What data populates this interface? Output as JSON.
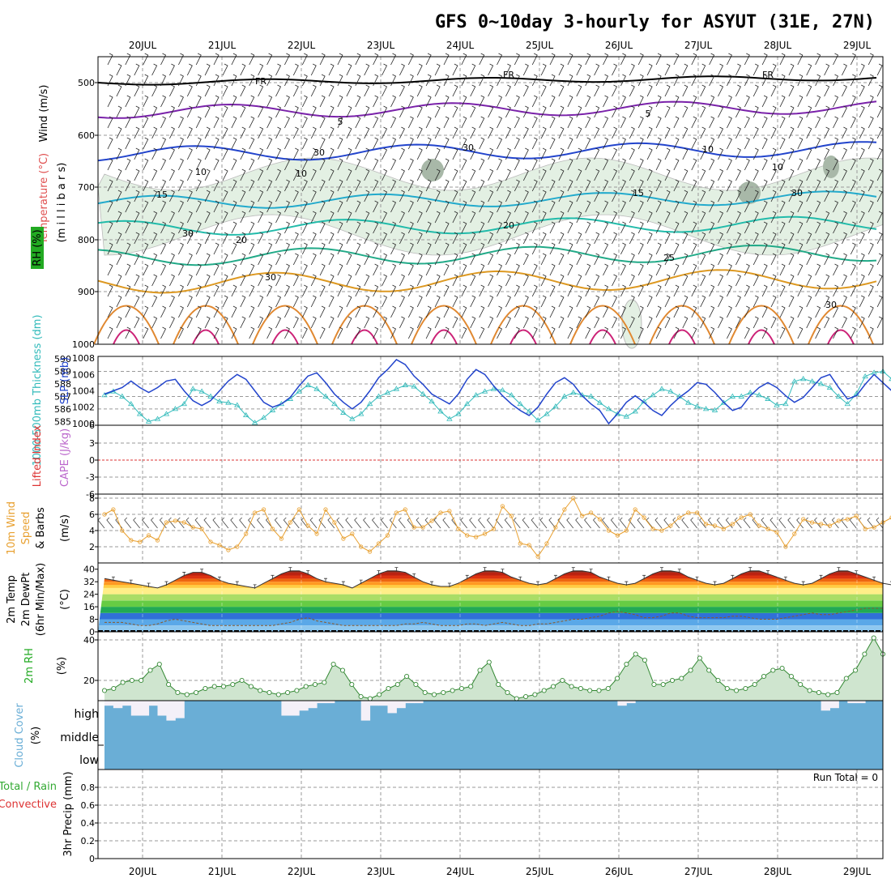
{
  "title": "GFS 0~10day 3-hourly for ASYUT (31E, 27N)",
  "dates": [
    "20JUL",
    "21JUL",
    "22JUL",
    "23JUL",
    "24JUL",
    "25JUL",
    "26JUL",
    "27JUL",
    "28JUL",
    "29JUL"
  ],
  "colors": {
    "temp_label": "#e05050",
    "wind_label": "#000000",
    "rh_green": "#22aa22",
    "thickness": "#33bbbb",
    "slp": "#2244cc",
    "lifted": "#dd3333",
    "cape": "#bb66cc",
    "wind10": "#e8a030",
    "cloud": "#6aaed6",
    "precip_total": "#33aa33",
    "precip_conv": "#dd3333"
  },
  "panels": {
    "upper": {
      "ylabels": {
        "wind": "Wind (m/s)",
        "temp": "Temperature (°C)",
        "rh": "RH (%)",
        "mb": "(m i l l i b a r s)"
      },
      "y_ticks": [
        "500",
        "600",
        "700",
        "800",
        "900",
        "1000"
      ],
      "contour_labels": [
        "FR",
        "FR",
        "FR",
        "5",
        "5",
        "10",
        "10",
        "15",
        "15",
        "20",
        "20",
        "25",
        "30",
        "30",
        "30",
        "30",
        "10",
        "10",
        "30",
        "30"
      ]
    },
    "thickness_slp": {
      "ylabels": {
        "thickness": "1000-500mb Thickness (dm)",
        "slp": "SLP (mb)"
      },
      "left_ticks": [
        "590",
        "589",
        "588",
        "587",
        "586",
        "585"
      ],
      "right_ticks": [
        "1008",
        "1006",
        "1004",
        "1002",
        "1000"
      ]
    },
    "li_cape": {
      "ylabels": {
        "li": "Lifted Index",
        "cape": "CAPE (J/kg)"
      },
      "left_ticks": [
        "6",
        "3",
        "0",
        "-3",
        "-6"
      ]
    },
    "wind10": {
      "ylabels": {
        "a": "10m Wind",
        "b": "Speed",
        "c": "& Barbs",
        "unit": "(m/s)"
      },
      "y_ticks": [
        "8",
        "6",
        "4",
        "2"
      ]
    },
    "temp2m": {
      "ylabels": {
        "a": "2m Temp",
        "b": "2m DewPt",
        "c": "(6hr Min/Max)",
        "unit": "(°C)"
      },
      "y_ticks": [
        "40",
        "32",
        "24",
        "16",
        "8",
        "0"
      ]
    },
    "rh2m": {
      "ylabels": {
        "a": "2m RH",
        "unit": "(%)"
      },
      "y_ticks": [
        "40",
        "20"
      ]
    },
    "cloud": {
      "ylabels": {
        "a": "Cloud Cover",
        "unit": "(%)"
      },
      "levels": [
        "high",
        "middle",
        "low"
      ]
    },
    "precip": {
      "ylabels": {
        "a": "Total / Rain",
        "b": "Convective",
        "c": "3hr Precip (mm)"
      },
      "y_ticks": [
        "0.8",
        "0.6",
        "0.4",
        "0.2",
        "0"
      ],
      "run_total": "Run Total = 0"
    }
  },
  "chart_data": [
    {
      "type": "line",
      "name": "1000-500mb Thickness",
      "x_dates_3hourly_from": "19JUL 12Z",
      "ylim": [
        584.7,
        590.2
      ],
      "values": [
        587.1,
        587.4,
        587.0,
        586.4,
        585.6,
        585.0,
        585.2,
        585.6,
        586.0,
        586.4,
        587.6,
        587.4,
        587.0,
        586.6,
        586.5,
        586.3,
        585.5,
        584.9,
        585.3,
        585.9,
        586.4,
        586.8,
        587.4,
        587.9,
        587.6,
        587.0,
        586.4,
        585.7,
        585.2,
        585.6,
        586.4,
        587.0,
        587.3,
        587.6,
        587.9,
        587.8,
        587.2,
        586.6,
        585.8,
        585.2,
        585.6,
        586.4,
        587.1,
        587.4,
        587.6,
        587.5,
        587.1,
        586.4,
        585.8,
        585.1,
        585.6,
        586.2,
        587.0,
        587.3,
        587.1,
        587.0,
        586.5,
        586.0,
        585.6,
        585.4,
        585.8,
        586.6,
        587.1,
        587.6,
        587.4,
        587.0,
        586.5,
        586.2,
        586.0,
        585.9,
        586.5,
        587.0,
        587.0,
        587.3,
        587.1,
        586.8,
        586.3,
        586.4,
        588.2,
        588.4,
        588.2,
        588.0,
        587.7,
        587.0,
        586.4,
        587.2,
        588.6,
        588.9,
        589.0,
        588.4,
        587.7,
        587.2,
        587.0
      ]
    },
    {
      "type": "line",
      "name": "SLP",
      "ylim": [
        999.8,
        1008.2
      ],
      "values": [
        1003.6,
        1004.0,
        1004.4,
        1005.2,
        1004.4,
        1003.8,
        1004.4,
        1005.2,
        1005.4,
        1004.0,
        1002.8,
        1002.2,
        1002.8,
        1004.0,
        1005.2,
        1006.0,
        1005.4,
        1004.0,
        1002.6,
        1002.0,
        1002.4,
        1003.2,
        1004.6,
        1005.8,
        1006.2,
        1005.0,
        1003.6,
        1002.6,
        1001.8,
        1002.6,
        1004.0,
        1005.6,
        1006.6,
        1007.8,
        1007.2,
        1005.8,
        1004.8,
        1003.6,
        1003.0,
        1002.4,
        1003.6,
        1005.4,
        1006.6,
        1006.0,
        1004.6,
        1003.4,
        1002.4,
        1001.6,
        1001.0,
        1002.0,
        1003.6,
        1005.0,
        1005.6,
        1004.8,
        1003.4,
        1002.4,
        1001.6,
        1000.0,
        1001.2,
        1002.6,
        1003.4,
        1002.6,
        1001.6,
        1001.0,
        1002.2,
        1003.2,
        1004.0,
        1005.0,
        1004.8,
        1003.8,
        1002.6,
        1001.6,
        1002.0,
        1003.4,
        1004.4,
        1005.0,
        1004.4,
        1003.4,
        1002.6,
        1003.2,
        1004.4,
        1005.6,
        1006.0,
        1004.4,
        1003.0,
        1003.4,
        1004.8,
        1006.0,
        1005.0,
        1004.0,
        1004.6,
        1005.8,
        1006.8
      ]
    },
    {
      "type": "line",
      "name": "10m Wind Speed",
      "ylim": [
        0,
        8.5
      ],
      "values": [
        6.0,
        6.6,
        4.0,
        2.8,
        2.6,
        3.4,
        2.8,
        5.0,
        5.2,
        5.0,
        4.4,
        4.2,
        2.6,
        2.2,
        1.6,
        2.0,
        3.6,
        6.2,
        6.6,
        4.2,
        3.0,
        5.0,
        6.6,
        4.6,
        3.6,
        6.6,
        5.0,
        3.0,
        3.6,
        2.0,
        1.4,
        2.4,
        3.4,
        6.2,
        6.6,
        4.4,
        4.4,
        5.2,
        6.2,
        6.4,
        4.2,
        3.4,
        3.2,
        3.6,
        4.2,
        7.0,
        5.8,
        2.4,
        2.2,
        0.8,
        2.4,
        4.4,
        6.6,
        8.0,
        5.8,
        6.2,
        5.4,
        4.0,
        3.4,
        4.0,
        6.6,
        5.6,
        4.2,
        4.0,
        4.6,
        5.6,
        6.2,
        6.2,
        4.8,
        4.6,
        4.2,
        4.8,
        5.6,
        6.0,
        4.6,
        4.2,
        3.8,
        2.0,
        3.6,
        5.4,
        5.0,
        4.8,
        4.6,
        5.2,
        5.4,
        5.8,
        4.2,
        4.4,
        5.0,
        5.6,
        5.8,
        5.4,
        5.6
      ]
    },
    {
      "type": "area",
      "name": "2m Temp",
      "ylim": [
        0,
        44
      ],
      "values": [
        34,
        33,
        32,
        31,
        30,
        29,
        28,
        30,
        33,
        36,
        38,
        38,
        36,
        33,
        31,
        30,
        29,
        28,
        31,
        34,
        37,
        39,
        39,
        37,
        34,
        32,
        31,
        30,
        28,
        31,
        34,
        37,
        39,
        39,
        38,
        35,
        32,
        30,
        29,
        29,
        31,
        34,
        37,
        39,
        39,
        38,
        35,
        33,
        31,
        30,
        31,
        34,
        37,
        39,
        39,
        38,
        35,
        33,
        31,
        30,
        31,
        34,
        37,
        39,
        39,
        38,
        35,
        33,
        31,
        30,
        31,
        34,
        37,
        39,
        39,
        37,
        35,
        33,
        31,
        30,
        31,
        34,
        37,
        39,
        39,
        37,
        35,
        33,
        31,
        30,
        31,
        33,
        34
      ]
    },
    {
      "type": "line",
      "name": "2m DewPt",
      "ylim": [
        0,
        44
      ],
      "values": [
        6,
        6,
        6,
        5,
        4,
        4,
        5,
        7,
        8,
        7,
        6,
        5,
        4,
        4,
        4,
        4,
        4,
        4,
        4,
        4,
        5,
        6,
        8,
        9,
        7,
        6,
        5,
        4,
        4,
        4,
        4,
        4,
        4,
        4,
        5,
        5,
        6,
        5,
        4,
        4,
        4,
        5,
        5,
        4,
        5,
        6,
        5,
        4,
        4,
        5,
        5,
        6,
        7,
        8,
        8,
        9,
        10,
        12,
        13,
        12,
        11,
        9,
        9,
        10,
        12,
        12,
        10,
        9,
        9,
        9,
        9,
        10,
        10,
        9,
        8,
        8,
        8,
        9,
        10,
        11,
        12,
        11,
        11,
        12,
        13,
        14,
        15,
        15,
        15
      ]
    },
    {
      "type": "area",
      "name": "2m RH",
      "ylim": [
        10,
        44
      ],
      "values": [
        15,
        16,
        19,
        20,
        20,
        25,
        28,
        18,
        14,
        13,
        14,
        16,
        17,
        17,
        18,
        20,
        17,
        15,
        14,
        13,
        14,
        15,
        17,
        18,
        19,
        28,
        25,
        18,
        12,
        11,
        13,
        16,
        18,
        22,
        18,
        14,
        13,
        14,
        15,
        16,
        17,
        25,
        29,
        18,
        14,
        11,
        12,
        13,
        15,
        17,
        20,
        17,
        16,
        15,
        15,
        16,
        21,
        28,
        33,
        30,
        18,
        18,
        20,
        21,
        25,
        31,
        25,
        20,
        16,
        15,
        16,
        18,
        22,
        25,
        26,
        22,
        18,
        15,
        14,
        13,
        14,
        21,
        25,
        33,
        41,
        33
      ]
    },
    {
      "type": "bar",
      "name": "High Cloud Cover",
      "values": [
        10,
        15,
        10,
        30,
        30,
        10,
        30,
        40,
        35,
        0,
        0,
        0,
        0,
        0,
        0,
        0,
        0,
        0,
        0,
        0,
        30,
        30,
        20,
        15,
        5,
        5,
        0,
        0,
        0,
        40,
        10,
        10,
        25,
        15,
        5,
        5,
        0,
        0,
        0,
        0,
        0,
        0,
        0,
        0,
        0,
        0,
        0,
        0,
        0,
        0,
        0,
        0,
        0,
        0,
        0,
        0,
        0,
        0,
        10,
        5,
        0,
        0,
        0,
        0,
        0,
        0,
        0,
        0,
        0,
        0,
        0,
        0,
        0,
        0,
        0,
        0,
        0,
        0,
        0,
        0,
        0,
        20,
        15,
        0,
        5,
        5,
        0,
        0,
        0,
        40,
        40,
        30,
        0,
        0
      ]
    },
    {
      "type": "bar",
      "name": "3hr Precip",
      "ylim": [
        0,
        1
      ],
      "values": []
    }
  ]
}
